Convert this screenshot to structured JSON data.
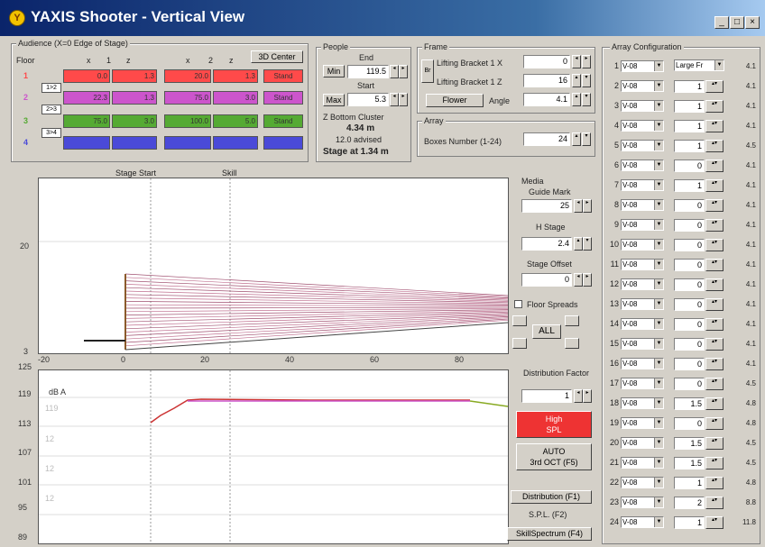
{
  "window": {
    "title": "YAXIS Shooter - Vertical View",
    "min": "_",
    "max": "□",
    "close": "×"
  },
  "audience": {
    "group_label": "Audience (X=0 Edge of Stage)",
    "floor_header": "Floor",
    "col_x1": "x",
    "col_1": "1",
    "col_z1": "z",
    "col_x2": "x",
    "col_2": "2",
    "col_z2": "z",
    "center_button": "3D Center",
    "floors": [
      {
        "label": "1",
        "color": "#ff4a4a",
        "x1": "0.0",
        "z1": "1.3",
        "x2": "20.0",
        "z2": "1.3",
        "btn": "Stand"
      },
      {
        "label": "2",
        "color": "#cc55cc",
        "x1": "22.3",
        "z1": "1.3",
        "x2": "75.0",
        "z2": "3.0",
        "btn": "Stand"
      },
      {
        "label": "3",
        "color": "#55aa33",
        "x1": "75.0",
        "z1": "3.0",
        "x2": "100.0",
        "z2": "5.0",
        "btn": "Stand"
      },
      {
        "label": "4",
        "color": "#4a4ad8",
        "x1": "",
        "z1": "",
        "x2": "",
        "z2": "",
        "btn": ""
      }
    ],
    "copy_labels": [
      "1>2",
      "2>3",
      "3>4"
    ]
  },
  "people": {
    "group_label": "People",
    "end_label": "End",
    "min_button": "Min",
    "end_value": "119.5",
    "start_label": "Start",
    "max_button": "Max",
    "start_value": "5.3",
    "cluster_label": "Z Bottom Cluster",
    "cluster_value": "4.34 m",
    "advised": "12.0 advised",
    "stage": "Stage at 1.34 m"
  },
  "frame": {
    "group_label": "Frame",
    "toggle": "Br",
    "lb1_label": "Lifting Bracket 1 X",
    "lb1_value": "0",
    "lb2_label": "Lifting Bracket 1 Z",
    "lb2_value": "16",
    "flower_button": "Flower",
    "angle_label": "Angle",
    "angle_value": "4.1"
  },
  "array": {
    "group_label": "Array",
    "boxes_label": "Boxes Number (1-24)",
    "boxes_value": "24"
  },
  "media": {
    "group_label": "Media",
    "guide_label": "Guide Mark",
    "guide_value": "25",
    "hstage_label": "H Stage",
    "hstage_value": "2.4",
    "offset_label": "Stage Offset",
    "offset_value": "0",
    "floor_spreads": "Floor Spreads",
    "all_button": "ALL"
  },
  "distribution": {
    "group_label": "Distribution Factor",
    "factor_value": "1",
    "high_spl_line1": "High",
    "high_spl_line2": "SPL",
    "auto_line1": "AUTO",
    "auto_line2": "3rd OCT (F5)",
    "dist_button": "Distribution (F1)",
    "spl_button": "S.P.L. (F2)",
    "spectrum_button": "SkillSpectrum (F4)"
  },
  "plot_top": {
    "label_stage": "Stage Start",
    "label_skill": "Skill",
    "y_ticks": [
      "20",
      "3"
    ],
    "x_ticks": [
      "-20",
      "0",
      "20",
      "40",
      "60",
      "80"
    ]
  },
  "plot_bottom": {
    "unit": "dB A",
    "y_ticks": [
      "125",
      "119",
      "113",
      "107",
      "101",
      "95",
      "89"
    ],
    "inner_ticks": [
      "119",
      "12",
      "12",
      "12"
    ]
  },
  "array_config": {
    "group_label": "Array Configuration",
    "default_type": "Large Fr",
    "rows": [
      {
        "n": "1",
        "type": "V-08",
        "val": "",
        "db": "4.1"
      },
      {
        "n": "2",
        "type": "V-08",
        "val": "1",
        "db": "4.1"
      },
      {
        "n": "3",
        "type": "V-08",
        "val": "1",
        "db": "4.1"
      },
      {
        "n": "4",
        "type": "V-08",
        "val": "1",
        "db": "4.1"
      },
      {
        "n": "5",
        "type": "V-08",
        "val": "1",
        "db": "4.5"
      },
      {
        "n": "6",
        "type": "V-08",
        "val": "0",
        "db": "4.1"
      },
      {
        "n": "7",
        "type": "V-08",
        "val": "1",
        "db": "4.1"
      },
      {
        "n": "8",
        "type": "V-08",
        "val": "0",
        "db": "4.1"
      },
      {
        "n": "9",
        "type": "V-08",
        "val": "0",
        "db": "4.1"
      },
      {
        "n": "10",
        "type": "V-08",
        "val": "0",
        "db": "4.1"
      },
      {
        "n": "11",
        "type": "V-08",
        "val": "0",
        "db": "4.1"
      },
      {
        "n": "12",
        "type": "V-08",
        "val": "0",
        "db": "4.1"
      },
      {
        "n": "13",
        "type": "V-08",
        "val": "0",
        "db": "4.1"
      },
      {
        "n": "14",
        "type": "V-08",
        "val": "0",
        "db": "4.1"
      },
      {
        "n": "15",
        "type": "V-08",
        "val": "0",
        "db": "4.1"
      },
      {
        "n": "16",
        "type": "V-08",
        "val": "0",
        "db": "4.1"
      },
      {
        "n": "17",
        "type": "V-08",
        "val": "0",
        "db": "4.5"
      },
      {
        "n": "18",
        "type": "V-08",
        "val": "1.5",
        "db": "4.8"
      },
      {
        "n": "19",
        "type": "V-08",
        "val": "0",
        "db": "4.8"
      },
      {
        "n": "20",
        "type": "V-08",
        "val": "1.5",
        "db": "4.5"
      },
      {
        "n": "21",
        "type": "V-08",
        "val": "1.5",
        "db": "4.5"
      },
      {
        "n": "22",
        "type": "V-08",
        "val": "1",
        "db": "4.8"
      },
      {
        "n": "23",
        "type": "V-08",
        "val": "2",
        "db": "8.8"
      },
      {
        "n": "24",
        "type": "V-08",
        "val": "1",
        "db": "11.8"
      }
    ]
  }
}
